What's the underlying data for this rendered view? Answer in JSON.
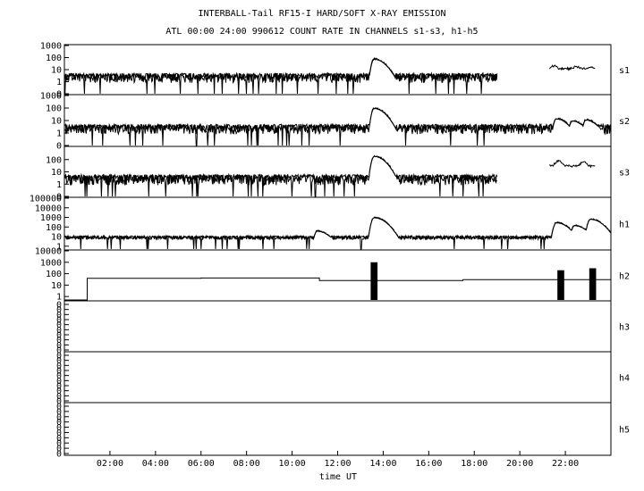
{
  "title": "INTERBALL-Tail RF15-I HARD/SOFT X-RAY EMISSION",
  "subtitle": "ATL 00:00 24:00 990612  COUNT RATE IN CHANNELS s1-s3, h1-h5",
  "chart_data": {
    "type": "line",
    "title": "INTERBALL-Tail RF15-I HARD/SOFT X-RAY EMISSION",
    "subtitle": "ATL 00:00 24:00 990612  COUNT RATE IN CHANNELS s1-s3, h1-h5",
    "xlabel": "time UT",
    "xlim": [
      0,
      24
    ],
    "x_ticks": [
      "02:00",
      "04:00",
      "06:00",
      "08:00",
      "10:00",
      "12:00",
      "14:00",
      "16:00",
      "18:00",
      "20:00",
      "22:00"
    ],
    "x_tick_hours": [
      2,
      4,
      6,
      8,
      10,
      12,
      14,
      16,
      18,
      20,
      22
    ],
    "yscale": "log",
    "grid": false,
    "panels": [
      {
        "name": "s1",
        "ylim": [
          0.1,
          1000
        ],
        "y_ticks": [
          "1000",
          "100",
          "10",
          "1",
          "0"
        ],
        "y_tick_values": [
          1000,
          100,
          10,
          1,
          0.1
        ],
        "series": [
          {
            "segment": [
              0.0,
              19.0
            ],
            "baseline": 3,
            "noise_low": 0.8,
            "noise_high": 5
          },
          {
            "segment": [
              21.3,
              23.3
            ],
            "baseline": 12,
            "bumps": [
              [
                21.5,
                20
              ],
              [
                22.5,
                18
              ],
              [
                23.1,
                15
              ]
            ]
          }
        ],
        "peaks": [
          [
            13.6,
            80
          ]
        ]
      },
      {
        "name": "s2",
        "ylim": [
          0.1,
          1000
        ],
        "y_ticks": [
          "1000",
          "100",
          "10",
          "1",
          "0"
        ],
        "y_tick_values": [
          1000,
          100,
          10,
          1,
          0.1
        ],
        "series": [
          {
            "segment": [
              0.0,
              24.0
            ],
            "baseline": 3,
            "noise_low": 0.8,
            "noise_high": 5
          }
        ],
        "peaks": [
          [
            13.6,
            100
          ],
          [
            21.6,
            15
          ],
          [
            22.3,
            10
          ],
          [
            22.9,
            12
          ]
        ]
      },
      {
        "name": "s3",
        "ylim": [
          0.1,
          1000
        ],
        "y_ticks": [
          "100",
          "10",
          "1",
          "0"
        ],
        "y_tick_values": [
          100,
          10,
          1,
          0.1
        ],
        "series": [
          {
            "segment": [
              0.0,
              19.0
            ],
            "baseline": 3,
            "noise_low": 0.8,
            "noise_high": 6
          },
          {
            "segment": [
              21.3,
              23.3
            ],
            "baseline": 30,
            "bumps": [
              [
                21.7,
                70
              ],
              [
                22.8,
                60
              ]
            ]
          }
        ],
        "peaks": [
          [
            13.6,
            200
          ]
        ]
      },
      {
        "name": "h1",
        "ylim": [
          0.5,
          100000
        ],
        "y_ticks": [
          "100000",
          "10000",
          "1000",
          "100",
          "10",
          "1"
        ],
        "y_tick_values": [
          100000,
          10000,
          1000,
          100,
          10,
          1
        ],
        "series": [
          {
            "segment": [
              0.0,
              24.0
            ],
            "baseline": 8,
            "noise_low": 5,
            "noise_high": 12
          }
        ],
        "peaks": [
          [
            13.6,
            1000
          ],
          [
            11.1,
            40
          ],
          [
            21.6,
            300
          ],
          [
            22.4,
            150
          ],
          [
            23.1,
            700
          ]
        ]
      },
      {
        "name": "h2",
        "ylim": [
          0.5,
          10000
        ],
        "y_ticks": [
          "10000",
          "1000",
          "100",
          "10",
          "1"
        ],
        "y_tick_values": [
          10000,
          1000,
          100,
          10,
          1
        ],
        "steps": [
          [
            0.0,
            0.5
          ],
          [
            1.0,
            40
          ],
          [
            6.0,
            42
          ],
          [
            11.2,
            25
          ],
          [
            17.5,
            30
          ],
          [
            21.0,
            30
          ]
        ],
        "peaks": [
          [
            13.6,
            1000
          ],
          [
            21.8,
            200
          ],
          [
            23.2,
            300
          ]
        ]
      },
      {
        "name": "h3",
        "ylim": [
          0.5,
          10
        ],
        "y_ticks": [
          "0",
          "0",
          "0",
          "0",
          "0",
          "0",
          "0",
          "0",
          "0",
          "0"
        ],
        "y_tick_values": [
          0.5,
          0.5,
          0.5,
          0.5,
          0.5,
          0.5,
          0.5,
          0.5,
          0.5,
          0.5
        ],
        "series": []
      },
      {
        "name": "h4",
        "ylim": [
          0.5,
          10
        ],
        "y_ticks": [
          "0",
          "0",
          "0",
          "0",
          "0",
          "0",
          "0",
          "0",
          "0",
          "0"
        ],
        "y_tick_values": [
          0.5,
          0.5,
          0.5,
          0.5,
          0.5,
          0.5,
          0.5,
          0.5,
          0.5,
          0.5
        ],
        "series": []
      },
      {
        "name": "h5",
        "ylim": [
          0.5,
          10
        ],
        "y_ticks": [
          "0",
          "0",
          "0",
          "0",
          "0",
          "0",
          "0",
          "0",
          "0",
          "0"
        ],
        "y_tick_values": [
          0.5,
          0.5,
          0.5,
          0.5,
          0.5,
          0.5,
          0.5,
          0.5,
          0.5,
          0.5
        ],
        "series": []
      }
    ]
  }
}
